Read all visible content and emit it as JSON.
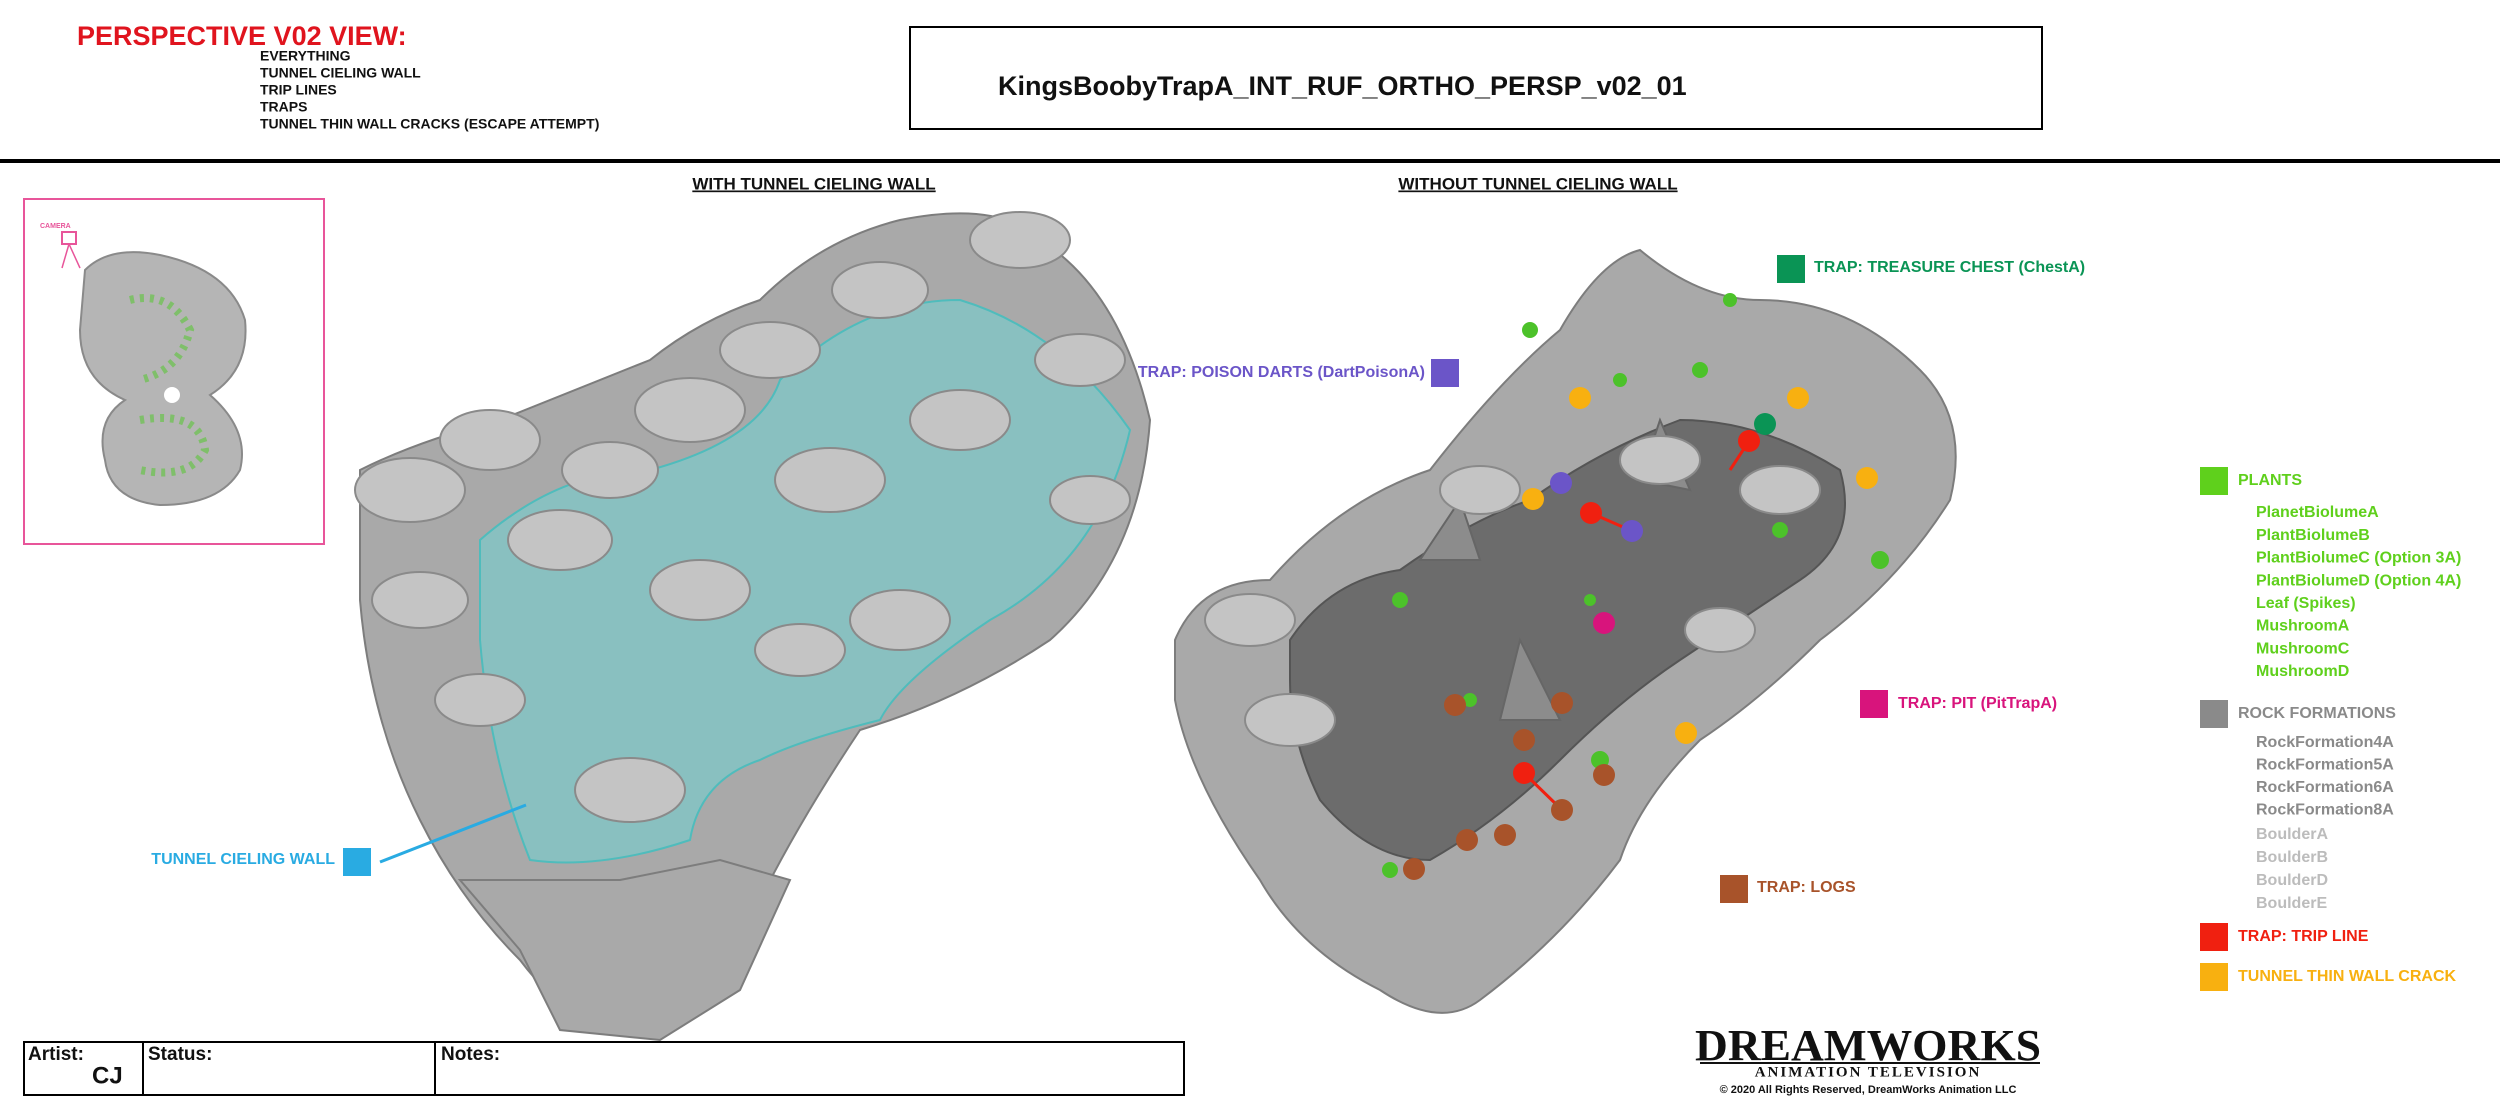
{
  "header": {
    "view_title": "PERSPECTIVE V02 VIEW:",
    "view_items": [
      "EVERYTHING",
      "TUNNEL CIELING WALL",
      "TRIP LINES",
      "TRAPS",
      "TUNNEL THIN WALL CRACKS (ESCAPE ATTEMPT)"
    ],
    "file_name": "KingsBoobyTrapA_INT_RUF_ORTHO_PERSP_v02_01"
  },
  "panels": {
    "left_title": "WITH TUNNEL CIELING WALL",
    "right_title": "WITHOUT TUNNEL CIELING WALL",
    "inset_label": "CAMERA"
  },
  "callouts": {
    "tunnel_wall": "TUNNEL CIELING WALL",
    "poison_darts": "TRAP: POISON DARTS (DartPoisonA)",
    "treasure_chest": "TRAP: TREASURE CHEST (ChestA)",
    "pit": "TRAP: PIT (PitTrapA)",
    "logs": "TRAP: LOGS"
  },
  "legend": {
    "plants": {
      "title": "PLANTS",
      "items": [
        "PlanetBiolumeA",
        "PlantBiolumeB",
        "PlantBiolumeC (Option 3A)",
        "PlantBiolumeD (Option 4A)",
        "Leaf (Spikes)",
        "MushroomA",
        "MushroomC",
        "MushroomD"
      ]
    },
    "rocks": {
      "title": "ROCK FORMATIONS",
      "items": [
        "RockFormation4A",
        "RockFormation5A",
        "RockFormation6A",
        "RockFormation8A"
      ],
      "boulders": [
        "BoulderA",
        "BoulderB",
        "BoulderD",
        "BoulderE"
      ]
    },
    "trip_line": "TRAP: TRIP LINE",
    "wall_crack": "TUNNEL THIN WALL CRACK"
  },
  "footer": {
    "artist_label": "Artist:",
    "artist": "CJ",
    "status_label": "Status:",
    "notes_label": "Notes:"
  },
  "logo": {
    "name": "DREAMWORKS",
    "division": "ANIMATION TELEVISION",
    "copyright": "© 2020 All Rights Reserved, DreamWorks Animation LLC"
  }
}
